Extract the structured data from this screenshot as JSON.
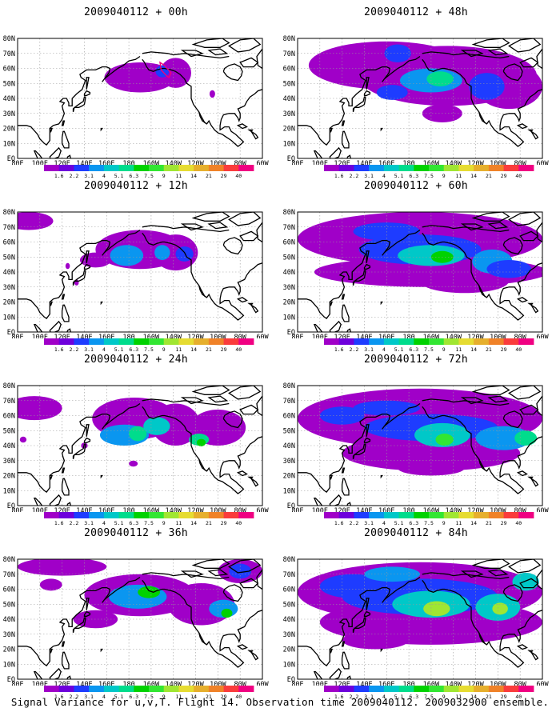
{
  "panels": [
    {
      "title": "2009040112 + 00h",
      "lead_hours": 0
    },
    {
      "title": "2009040112 + 48h",
      "lead_hours": 48
    },
    {
      "title": "2009040112 + 12h",
      "lead_hours": 12
    },
    {
      "title": "2009040112 + 60h",
      "lead_hours": 60
    },
    {
      "title": "2009040112 + 24h",
      "lead_hours": 24
    },
    {
      "title": "2009040112 + 72h",
      "lead_hours": 72
    },
    {
      "title": "2009040112 + 36h",
      "lead_hours": 36
    },
    {
      "title": "2009040112 + 84h",
      "lead_hours": 84
    }
  ],
  "map": {
    "lat_labels": [
      "80N",
      "70N",
      "60N",
      "50N",
      "40N",
      "30N",
      "20N",
      "10N",
      "EQ"
    ],
    "lon_labels": [
      "80E",
      "100E",
      "120E",
      "140E",
      "160E",
      "180",
      "160W",
      "140W",
      "120W",
      "100W",
      "80W",
      "60W"
    ]
  },
  "legend": {
    "levels": [
      "1.6",
      "2.2",
      "3.1",
      "4",
      "5.1",
      "6.3",
      "7.5",
      "9",
      "11",
      "14",
      "21",
      "29",
      "40"
    ],
    "colors": [
      "#a000c8",
      "#6e00dc",
      "#1e3cff",
      "#0a96f0",
      "#00c8c8",
      "#00dc8c",
      "#00d200",
      "#32e632",
      "#a0e632",
      "#e6dc32",
      "#e6af2d",
      "#f08228",
      "#fa3c3c",
      "#f00082"
    ]
  },
  "caption": "Signal Variance for u,v,T. Flight 14. Observation time 2009040112. 2009032900 ensemble."
}
